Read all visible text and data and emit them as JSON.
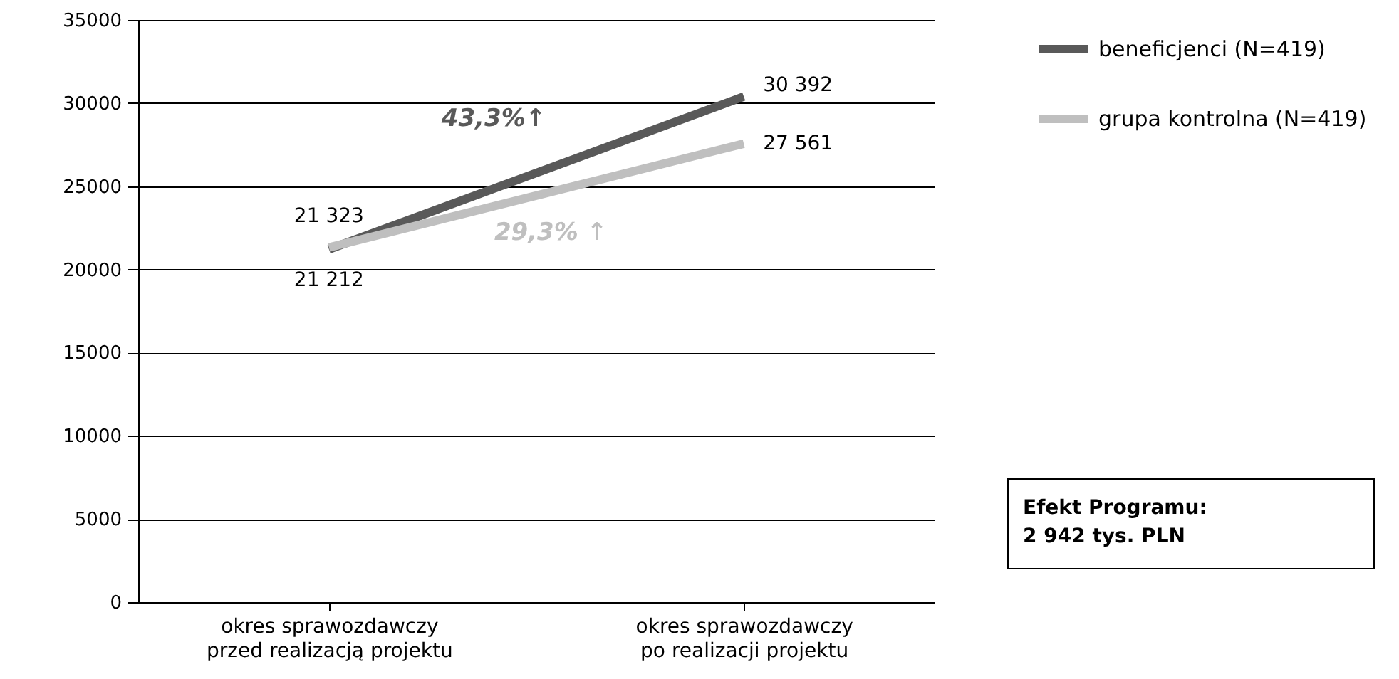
{
  "chart_data": {
    "type": "line",
    "categories": [
      "okres sprawozdawczy\nprzed realizacją projektu",
      "okres sprawozdawczy\npo realizacji projektu"
    ],
    "series": [
      {
        "name": "beneficjenci (N=419)",
        "color": "#595959",
        "values": [
          21212,
          30392
        ],
        "value_labels": [
          "21 212",
          "30 392"
        ]
      },
      {
        "name": "grupa kontrolna (N=419)",
        "color": "#bfbfbf",
        "values": [
          21323,
          27561
        ],
        "value_labels": [
          "21 323",
          "27 561"
        ]
      }
    ],
    "annotations": [
      "43,3%↑",
      "29,3% ↑",
      "Efekt Programu:\n2 942 tys. PLN"
    ],
    "ylim": [
      0,
      35000
    ],
    "yticks": [
      0,
      5000,
      10000,
      15000,
      20000,
      25000,
      30000,
      35000
    ],
    "grid": "y",
    "legend": "top right",
    "marker": "none",
    "line_style": "solid"
  }
}
